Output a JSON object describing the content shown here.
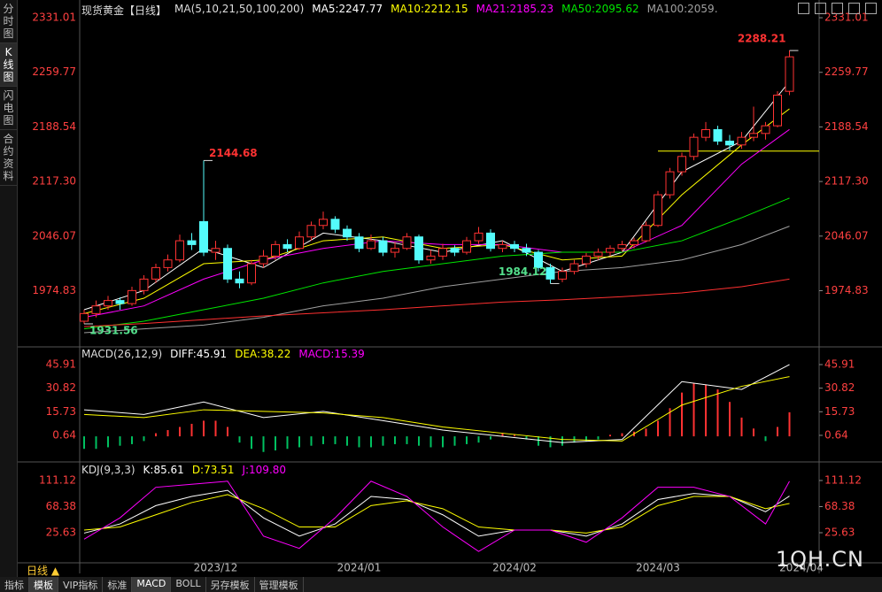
{
  "sidebar": [
    "分时图",
    "K线图",
    "闪电图",
    "合约资料"
  ],
  "toolbar": [
    "指标",
    "模板",
    "VIP指标",
    "标准",
    "MACD",
    "BOLL",
    "另存模板",
    "管理模板"
  ],
  "period": "日线 ▲",
  "watermark": "1QH.CN",
  "chart_data": [
    {
      "type": "candlestick",
      "title": "现货黄金【日线】",
      "indicator": "MA(5,10,21,50,100,200)",
      "ylim": [
        1909.6,
        2344.9
      ],
      "yticks": [
        1974.83,
        {
          "value": 2046.07,
          "label": "2046.07"
        },
        {
          "value": 2117.3,
          "label": "2117.30"
        },
        2188.54,
        2259.77,
        2331.01
      ],
      "grid": false,
      "up_color": "#ff3232",
      "down_color": "#54fcfc",
      "categories": [
        null,
        null,
        null,
        null,
        null,
        null,
        null,
        null,
        null,
        null,
        null,
        "2023/12",
        null,
        null,
        null,
        null,
        null,
        null,
        null,
        null,
        null,
        null,
        null,
        "2024/01",
        null,
        null,
        null,
        null,
        null,
        null,
        null,
        null,
        null,
        null,
        null,
        null,
        "2024/02",
        null,
        null,
        null,
        null,
        null,
        null,
        null,
        null,
        null,
        null,
        null,
        "2024/03",
        null,
        null,
        null,
        null,
        null,
        null,
        null,
        null,
        null,
        null,
        null,
        "2024/04"
      ],
      "ohlc": [
        [
          1935,
          1950,
          1931.56,
          1945
        ],
        [
          1945,
          1962,
          1940,
          1955
        ],
        [
          1955,
          1968,
          1950,
          1962
        ],
        [
          1962,
          1966,
          1950,
          1958
        ],
        [
          1958,
          1980,
          1955,
          1975
        ],
        [
          1975,
          1995,
          1970,
          1990
        ],
        [
          1990,
          2010,
          1985,
          2005
        ],
        [
          2005,
          2022,
          2000,
          2015
        ],
        [
          2015,
          2048,
          2012,
          2040
        ],
        [
          2040,
          2050,
          2028,
          2035
        ],
        [
          2065,
          2144.68,
          2020,
          2025
        ],
        [
          2025,
          2040,
          2015,
          2030
        ],
        [
          2030,
          2035,
          1985,
          1990
        ],
        [
          1990,
          2000,
          1978,
          1985
        ],
        [
          1985,
          2015,
          1982,
          2010
        ],
        [
          2010,
          2028,
          2005,
          2020
        ],
        [
          2020,
          2040,
          2015,
          2035
        ],
        [
          2035,
          2042,
          2025,
          2030
        ],
        [
          2030,
          2052,
          2028,
          2045
        ],
        [
          2045,
          2065,
          2040,
          2060
        ],
        [
          2060,
          2078,
          2055,
          2068
        ],
        [
          2068,
          2072,
          2050,
          2055
        ],
        [
          2055,
          2060,
          2040,
          2045
        ],
        [
          2045,
          2050,
          2025,
          2030
        ],
        [
          2030,
          2048,
          2028,
          2040
        ],
        [
          2040,
          2045,
          2020,
          2025
        ],
        [
          2025,
          2038,
          2018,
          2030
        ],
        [
          2030,
          2050,
          2028,
          2045
        ],
        [
          2045,
          2048,
          2010,
          2015
        ],
        [
          2015,
          2028,
          2010,
          2020
        ],
        [
          2020,
          2036,
          2015,
          2030
        ],
        [
          2030,
          2034,
          2020,
          2025
        ],
        [
          2025,
          2045,
          2022,
          2040
        ],
        [
          2040,
          2058,
          2036,
          2050
        ],
        [
          2050,
          2055,
          2026,
          2030
        ],
        [
          2030,
          2040,
          2025,
          2035
        ],
        [
          2035,
          2040,
          2025,
          2030
        ],
        [
          2030,
          2036,
          2020,
          2025
        ],
        [
          2025,
          2028,
          2000,
          2005
        ],
        [
          2005,
          2010,
          1984.12,
          1990
        ],
        [
          1990,
          2005,
          1986,
          2000
        ],
        [
          2000,
          2015,
          1996,
          2010
        ],
        [
          2010,
          2024,
          2005,
          2020
        ],
        [
          2020,
          2030,
          2015,
          2025
        ],
        [
          2025,
          2034,
          2020,
          2030
        ],
        [
          2030,
          2040,
          2026,
          2035
        ],
        [
          2035,
          2044,
          2030,
          2040
        ],
        [
          2040,
          2065,
          2038,
          2060
        ],
        [
          2060,
          2105,
          2058,
          2100
        ],
        [
          2100,
          2135,
          2095,
          2130
        ],
        [
          2130,
          2155,
          2125,
          2150
        ],
        [
          2150,
          2180,
          2145,
          2175
        ],
        [
          2175,
          2195,
          2170,
          2185
        ],
        [
          2185,
          2190,
          2165,
          2170
        ],
        [
          2170,
          2178,
          2158,
          2165
        ],
        [
          2165,
          2182,
          2160,
          2175
        ],
        [
          2175,
          2215,
          2170,
          2180
        ],
        [
          2180,
          2195,
          2172,
          2190
        ],
        [
          2190,
          2235,
          2188,
          2230
        ],
        [
          2235,
          2288.21,
          2230,
          2280
        ]
      ],
      "series": [
        {
          "legend_label": "MA5:2247.77",
          "color": "#ffffff",
          "x": [
            0,
            5,
            10,
            15,
            20,
            25,
            30,
            35,
            40,
            45,
            50,
            55,
            59
          ],
          "values": [
            1950,
            1975,
            2030,
            2005,
            2050,
            2040,
            2025,
            2040,
            2000,
            2025,
            2130,
            2170,
            2247.77
          ]
        },
        {
          "legend_label": "MA10:2212.15",
          "color": "#ffff00",
          "x": [
            0,
            5,
            10,
            15,
            20,
            25,
            30,
            35,
            40,
            45,
            50,
            55,
            59
          ],
          "values": [
            1945,
            1965,
            2010,
            2015,
            2040,
            2045,
            2030,
            2035,
            2015,
            2020,
            2100,
            2165,
            2212.15
          ]
        },
        {
          "legend_label": "MA21:2185.23",
          "color": "#ff00ff",
          "x": [
            0,
            5,
            10,
            15,
            20,
            25,
            30,
            35,
            40,
            45,
            50,
            55,
            59
          ],
          "values": [
            1940,
            1955,
            1990,
            2015,
            2030,
            2040,
            2035,
            2035,
            2025,
            2025,
            2060,
            2140,
            2185.23
          ]
        },
        {
          "legend_label": "MA50:2095.62",
          "color": "#00e600",
          "x": [
            0,
            5,
            10,
            15,
            20,
            25,
            30,
            35,
            40,
            45,
            50,
            55,
            59
          ],
          "values": [
            1925,
            1935,
            1950,
            1965,
            1985,
            2000,
            2010,
            2020,
            2025,
            2025,
            2040,
            2070,
            2095.62
          ]
        },
        {
          "legend_label": "MA100:2059.",
          "color": "#a0a0a0",
          "x": [
            0,
            5,
            10,
            15,
            20,
            25,
            30,
            35,
            40,
            45,
            50,
            55,
            59
          ],
          "values": [
            1920,
            1925,
            1930,
            1940,
            1955,
            1965,
            1980,
            1990,
            2000,
            2005,
            2015,
            2035,
            2059
          ]
        },
        {
          "color": "#ff3030",
          "x": [
            0,
            5,
            10,
            15,
            20,
            25,
            30,
            35,
            40,
            45,
            50,
            55,
            59
          ],
          "values": [
            1928,
            1932,
            1937,
            1942,
            1946,
            1950,
            1955,
            1960,
            1963,
            1967,
            1972,
            1980,
            1990
          ]
        }
      ],
      "hline": {
        "from_x": 48,
        "value": 2157,
        "color": "#ffff00"
      },
      "annotations": [
        {
          "x": 59,
          "y": 2288.21,
          "color": "#ff3232"
        },
        {
          "x": 10,
          "y": 2144.68,
          "color": "#ff3232"
        },
        {
          "x": 39,
          "y": 1984.12,
          "color": "#54e08c"
        },
        {
          "x": 0,
          "y": 1931.56,
          "color": "#54e08c"
        }
      ]
    },
    {
      "type": "line",
      "title": "MACD(26,12,9)",
      "ylim": [
        -12.4,
        52.7
      ],
      "yticks": [
        0.64,
        15.73,
        30.82,
        45.91
      ],
      "histogram": {
        "up_color": "#ff3232",
        "down_color": "#00c060",
        "values": [
          -8,
          -8,
          -7,
          -6,
          -5,
          -3,
          2,
          4,
          6,
          8,
          10,
          10,
          6,
          -4,
          -8,
          -10,
          -9,
          -8,
          -7,
          -6,
          -5,
          -5,
          -6,
          -7,
          -7,
          -6,
          -5,
          -5,
          -6,
          -7,
          -7,
          -6,
          -5,
          -4,
          -2,
          2,
          1,
          -2,
          -6,
          -7,
          -6,
          -4,
          -3,
          -2,
          1,
          2,
          3,
          5,
          10,
          18,
          28,
          34,
          33,
          30,
          22,
          12,
          5,
          -3,
          6,
          15.39
        ]
      },
      "legend": [
        {
          "text": "DIFF:45.91",
          "color": "#ffffff"
        },
        {
          "text": "DEA:38.22",
          "color": "#ffff00"
        },
        {
          "text": "MACD:15.39",
          "color": "#ff00ff"
        }
      ],
      "series": [
        {
          "color": "#ffffff",
          "x": [
            0,
            5,
            10,
            15,
            20,
            25,
            30,
            35,
            40,
            45,
            50,
            55,
            59
          ],
          "values": [
            17,
            14,
            22,
            12,
            16,
            10,
            4,
            0,
            -4,
            -2,
            35,
            30,
            45.91
          ]
        },
        {
          "color": "#ffff00",
          "x": [
            0,
            5,
            10,
            15,
            20,
            25,
            30,
            35,
            40,
            45,
            50,
            55,
            59
          ],
          "values": [
            14,
            12,
            17,
            16,
            15,
            12,
            6,
            2,
            -2,
            -3,
            20,
            32,
            38.22
          ]
        }
      ]
    },
    {
      "type": "line",
      "title": "KDJ(9,3,3)",
      "ylim": [
        -17.85,
        129.96
      ],
      "yticks": [
        25.63,
        68.38,
        111.12
      ],
      "legend": [
        {
          "text": "K:85.61",
          "color": "#ffffff"
        },
        {
          "text": "D:73.51",
          "color": "#ffff00"
        },
        {
          "text": "J:109.80",
          "color": "#ff00ff"
        }
      ],
      "series": [
        {
          "color": "#ffffff",
          "x": [
            0,
            3,
            6,
            9,
            12,
            15,
            18,
            21,
            24,
            27,
            30,
            33,
            36,
            39,
            42,
            45,
            48,
            51,
            54,
            57,
            59
          ],
          "values": [
            25,
            40,
            70,
            85,
            95,
            50,
            20,
            40,
            85,
            80,
            55,
            20,
            30,
            30,
            20,
            40,
            80,
            90,
            85,
            60,
            85.61
          ]
        },
        {
          "color": "#ffff00",
          "x": [
            0,
            3,
            6,
            9,
            12,
            15,
            18,
            21,
            24,
            27,
            30,
            33,
            36,
            39,
            42,
            45,
            48,
            51,
            54,
            57,
            59
          ],
          "values": [
            30,
            35,
            55,
            75,
            88,
            65,
            35,
            35,
            70,
            78,
            65,
            35,
            30,
            30,
            25,
            35,
            70,
            85,
            85,
            65,
            73.51
          ]
        },
        {
          "color": "#ff00ff",
          "x": [
            0,
            3,
            6,
            9,
            12,
            15,
            18,
            21,
            24,
            27,
            30,
            33,
            36,
            39,
            42,
            45,
            48,
            51,
            54,
            57,
            59
          ],
          "values": [
            15,
            50,
            100,
            105,
            110,
            20,
            0,
            50,
            110,
            85,
            35,
            -5,
            30,
            30,
            10,
            50,
            100,
            100,
            85,
            40,
            109.8
          ]
        }
      ]
    }
  ]
}
